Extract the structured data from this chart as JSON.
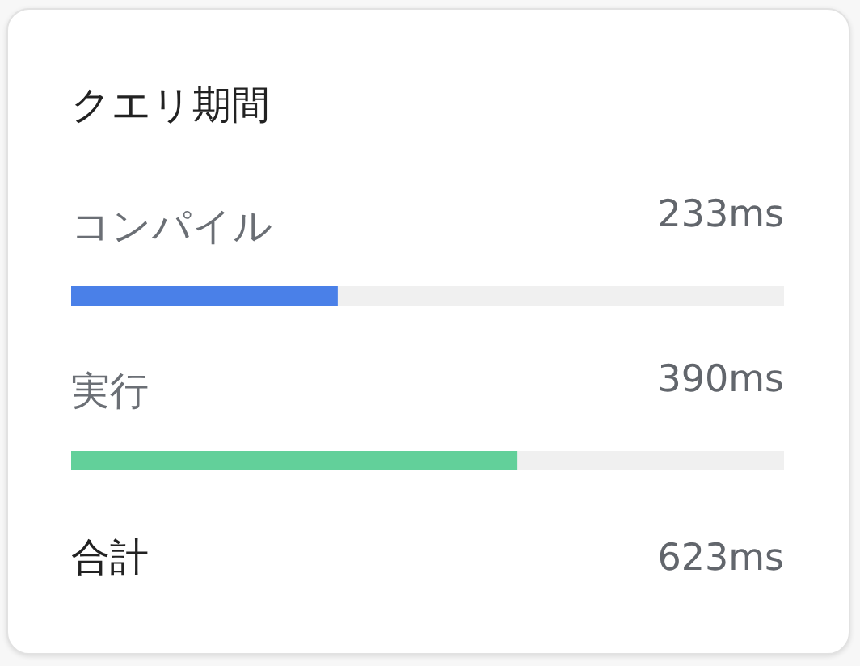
{
  "chart_data": {
    "type": "bar",
    "title": "クエリ期間",
    "orientation": "horizontal",
    "categories": [
      "コンパイル",
      "実行"
    ],
    "values": [
      233,
      390
    ],
    "colors": [
      "#4a80e8",
      "#62d09a"
    ],
    "value_labels": [
      "233ms",
      "390ms"
    ],
    "xlim": [
      0,
      623
    ],
    "tick_labels": "y",
    "annotations": [
      "合計",
      "623ms"
    ]
  }
}
